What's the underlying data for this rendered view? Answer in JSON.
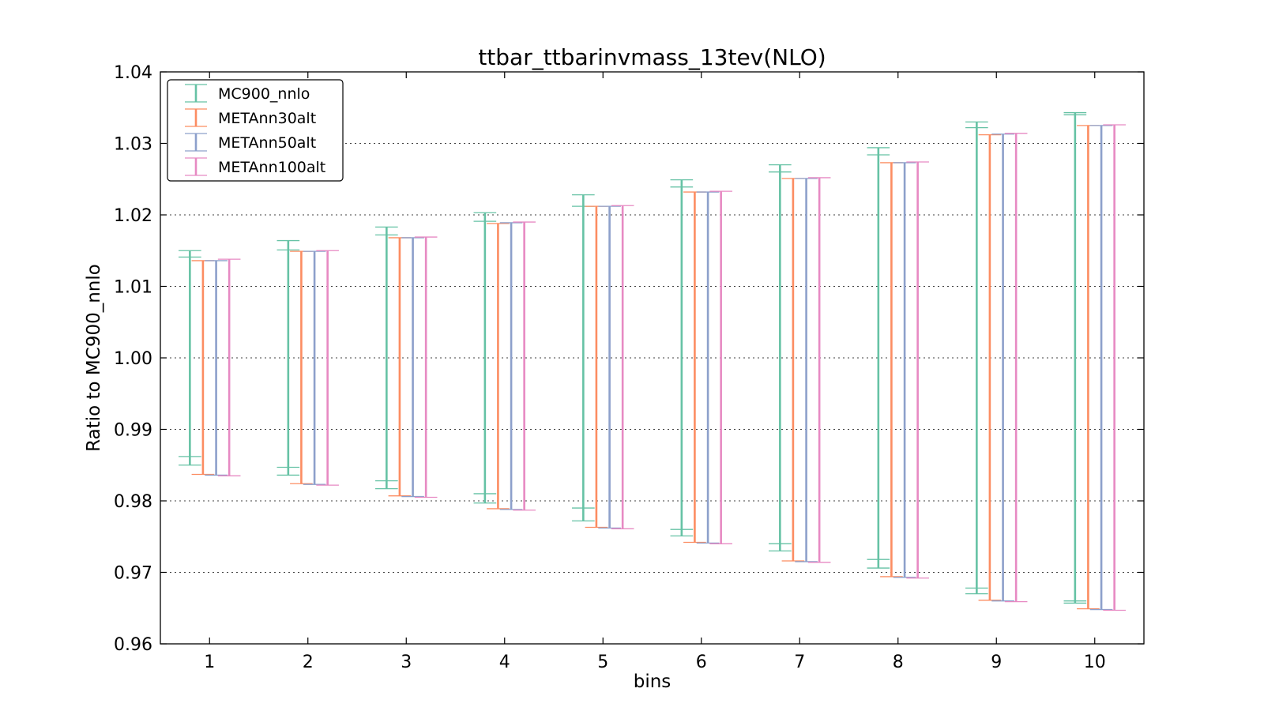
{
  "chart_data": {
    "type": "errorbar",
    "title": "ttbar_ttbarinvmass_13tev(NLO)",
    "xlabel": "bins",
    "ylabel": "Ratio to MC900_nnlo",
    "xlim": [
      0.5,
      10.5
    ],
    "ylim": [
      0.96,
      1.04
    ],
    "x_ticks": [
      1,
      2,
      3,
      4,
      5,
      6,
      7,
      8,
      9,
      10
    ],
    "y_ticks": [
      "0.96",
      "0.97",
      "0.98",
      "0.99",
      "1.00",
      "1.01",
      "1.02",
      "1.03",
      "1.04"
    ],
    "grid": "horizontal dotted",
    "legend_position": "upper-left",
    "series": [
      {
        "name": "MC900_nnlo",
        "color": "#66c2a5",
        "outer_upper": [
          1.015,
          1.0164,
          1.0183,
          1.0203,
          1.0228,
          1.0249,
          1.027,
          1.0294,
          1.033,
          1.0343
        ],
        "outer_lower": [
          0.985,
          0.9836,
          0.9817,
          0.9797,
          0.9772,
          0.9751,
          0.973,
          0.9706,
          0.967,
          0.9657
        ],
        "inner_upper": [
          1.0141,
          1.0151,
          1.0172,
          1.0191,
          1.0212,
          1.0239,
          1.026,
          1.0284,
          1.0322,
          1.034
        ],
        "inner_lower": [
          0.9862,
          0.9847,
          0.9828,
          0.981,
          0.979,
          0.976,
          0.974,
          0.9718,
          0.9678,
          0.966
        ]
      },
      {
        "name": "METAnn30alt",
        "color": "#fc8d62",
        "upper": [
          1.0136,
          1.0149,
          1.0168,
          1.0188,
          1.0212,
          1.0232,
          1.0251,
          1.0273,
          1.0312,
          1.0325
        ],
        "lower": [
          0.9837,
          0.9824,
          0.9807,
          0.9789,
          0.9763,
          0.9742,
          0.9716,
          0.9694,
          0.9661,
          0.9649
        ]
      },
      {
        "name": "METAnn50alt",
        "color": "#8da0cb",
        "upper": [
          1.0136,
          1.0149,
          1.0168,
          1.0189,
          1.0212,
          1.0232,
          1.0251,
          1.0273,
          1.0313,
          1.0325
        ],
        "lower": [
          0.9836,
          0.9823,
          0.9806,
          0.9788,
          0.9762,
          0.9741,
          0.9715,
          0.9693,
          0.966,
          0.9648
        ]
      },
      {
        "name": "METAnn100alt",
        "color": "#e78ac3",
        "upper": [
          1.0138,
          1.015,
          1.0169,
          1.019,
          1.0213,
          1.0233,
          1.0252,
          1.0274,
          1.0314,
          1.0326
        ],
        "lower": [
          0.9835,
          0.9822,
          0.9805,
          0.9787,
          0.9761,
          0.974,
          0.9714,
          0.9692,
          0.9659,
          0.9647
        ]
      }
    ]
  }
}
